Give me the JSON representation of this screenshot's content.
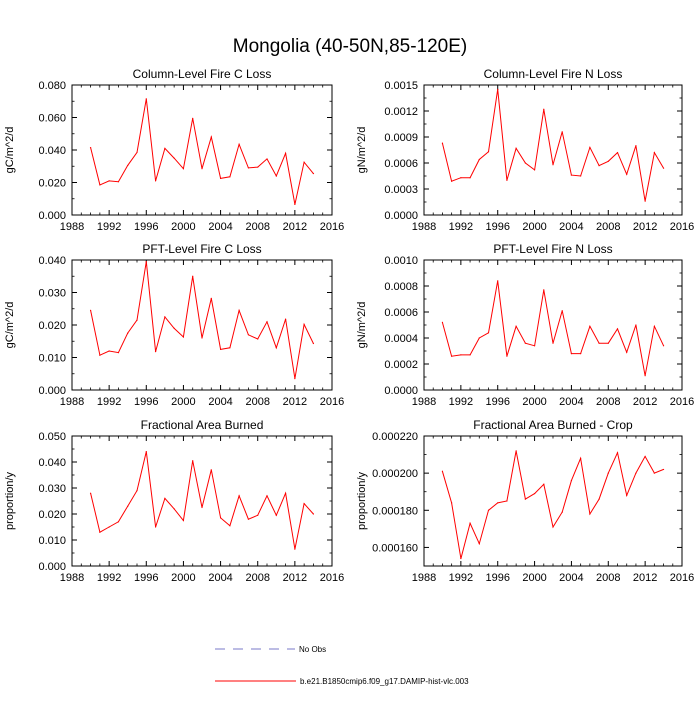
{
  "page_title": "Mongolia (40-50N,85-120E)",
  "legend": {
    "no_obs_label": "No Obs",
    "model_label": "b.e21.B1850cmip6.f09_g17.DAMIP-hist-vlc.003",
    "no_obs_color": "#7a7ac8",
    "model_color": "#ff0000"
  },
  "chart_data": [
    {
      "type": "line",
      "title": "Column-Level Fire C Loss",
      "xlabel": "",
      "ylabel": "gC/m^2/d",
      "xlim": [
        1988,
        2016
      ],
      "ylim": [
        0,
        0.08
      ],
      "xticks": [
        1988,
        1992,
        1996,
        2000,
        2004,
        2008,
        2012,
        2016
      ],
      "xtick_labels": [
        "1988",
        "1992",
        "1996",
        "2000",
        "2004",
        "2008",
        "2012",
        "2016"
      ],
      "yticks": [
        0,
        0.02,
        0.04,
        0.06,
        0.08
      ],
      "ytick_labels": [
        "0.000",
        "0.020",
        "0.040",
        "0.060",
        "0.080"
      ],
      "series": [
        {
          "name": "b.e21.B1850cmip6.f09_g17.DAMIP-hist-vlc.003",
          "x": [
            1990,
            1991,
            1992,
            1993,
            1994,
            1995,
            1996,
            1997,
            1998,
            1999,
            2000,
            2001,
            2002,
            2003,
            2004,
            2005,
            2006,
            2007,
            2008,
            2009,
            2010,
            2011,
            2012,
            2013,
            2014
          ],
          "values": [
            0.0415,
            0.0185,
            0.021,
            0.0205,
            0.0305,
            0.0385,
            0.0715,
            0.021,
            0.041,
            0.035,
            0.0285,
            0.0595,
            0.0285,
            0.048,
            0.0225,
            0.0235,
            0.0435,
            0.029,
            0.0295,
            0.0345,
            0.024,
            0.038,
            0.0065,
            0.0325,
            0.0255
          ]
        }
      ]
    },
    {
      "type": "line",
      "title": "Column-Level Fire N Loss",
      "xlabel": "",
      "ylabel": "gN/m^2/d",
      "xlim": [
        1988,
        2016
      ],
      "ylim": [
        0,
        0.0015
      ],
      "xticks": [
        1988,
        1992,
        1996,
        2000,
        2004,
        2008,
        2012,
        2016
      ],
      "xtick_labels": [
        "1988",
        "1992",
        "1996",
        "2000",
        "2004",
        "2008",
        "2012",
        "2016"
      ],
      "yticks": [
        0,
        0.0003,
        0.0006,
        0.0009,
        0.0012,
        0.0015
      ],
      "ytick_labels": [
        "0.0000",
        "0.0003",
        "0.0006",
        "0.0009",
        "0.0012",
        "0.0015"
      ],
      "series": [
        {
          "name": "b.e21.B1850cmip6.f09_g17.DAMIP-hist-vlc.003",
          "x": [
            1990,
            1991,
            1992,
            1993,
            1994,
            1995,
            1996,
            1997,
            1998,
            1999,
            2000,
            2001,
            2002,
            2003,
            2004,
            2005,
            2006,
            2007,
            2008,
            2009,
            2010,
            2011,
            2012,
            2013,
            2014
          ],
          "values": [
            0.00083,
            0.00039,
            0.00043,
            0.00043,
            0.00064,
            0.00073,
            0.00145,
            0.0004,
            0.00077,
            0.0006,
            0.00052,
            0.00122,
            0.00058,
            0.00096,
            0.00046,
            0.00045,
            0.00078,
            0.00057,
            0.00062,
            0.00072,
            0.00047,
            0.0008,
            0.00016,
            0.00072,
            0.00054
          ]
        }
      ]
    },
    {
      "type": "line",
      "title": "PFT-Level Fire C Loss",
      "xlabel": "",
      "ylabel": "gC/m^2/d",
      "xlim": [
        1988,
        2016
      ],
      "ylim": [
        0,
        0.04
      ],
      "xticks": [
        1988,
        1992,
        1996,
        2000,
        2004,
        2008,
        2012,
        2016
      ],
      "xtick_labels": [
        "1988",
        "1992",
        "1996",
        "2000",
        "2004",
        "2008",
        "2012",
        "2016"
      ],
      "yticks": [
        0,
        0.01,
        0.02,
        0.03,
        0.04
      ],
      "ytick_labels": [
        "0.000",
        "0.010",
        "0.020",
        "0.030",
        "0.040"
      ],
      "series": [
        {
          "name": "b.e21.B1850cmip6.f09_g17.DAMIP-hist-vlc.003",
          "x": [
            1990,
            1991,
            1992,
            1993,
            1994,
            1995,
            1996,
            1997,
            1998,
            1999,
            2000,
            2001,
            2002,
            2003,
            2004,
            2005,
            2006,
            2007,
            2008,
            2009,
            2010,
            2011,
            2012,
            2013,
            2014
          ],
          "values": [
            0.0245,
            0.0107,
            0.012,
            0.0115,
            0.0175,
            0.0215,
            0.0395,
            0.0118,
            0.0225,
            0.019,
            0.0163,
            0.035,
            0.016,
            0.0282,
            0.0125,
            0.013,
            0.0245,
            0.017,
            0.0157,
            0.021,
            0.013,
            0.0218,
            0.0035,
            0.0202,
            0.0143
          ]
        }
      ]
    },
    {
      "type": "line",
      "title": "PFT-Level Fire N Loss",
      "xlabel": "",
      "ylabel": "gN/m^2/d",
      "xlim": [
        1988,
        2016
      ],
      "ylim": [
        0,
        0.001
      ],
      "xticks": [
        1988,
        1992,
        1996,
        2000,
        2004,
        2008,
        2012,
        2016
      ],
      "xtick_labels": [
        "1988",
        "1992",
        "1996",
        "2000",
        "2004",
        "2008",
        "2012",
        "2016"
      ],
      "yticks": [
        0,
        0.0002,
        0.0004,
        0.0006,
        0.0008,
        0.001
      ],
      "ytick_labels": [
        "0.0000",
        "0.0002",
        "0.0004",
        "0.0006",
        "0.0008",
        "0.0010"
      ],
      "series": [
        {
          "name": "b.e21.B1850cmip6.f09_g17.DAMIP-hist-vlc.003",
          "x": [
            1990,
            1991,
            1992,
            1993,
            1994,
            1995,
            1996,
            1997,
            1998,
            1999,
            2000,
            2001,
            2002,
            2003,
            2004,
            2005,
            2006,
            2007,
            2008,
            2009,
            2010,
            2011,
            2012,
            2013,
            2014
          ],
          "values": [
            0.00052,
            0.00026,
            0.00027,
            0.00027,
            0.0004,
            0.00044,
            0.00084,
            0.00026,
            0.00049,
            0.00036,
            0.00034,
            0.00077,
            0.00036,
            0.00061,
            0.00028,
            0.00028,
            0.00049,
            0.00036,
            0.00036,
            0.00047,
            0.00029,
            0.0005,
            0.00011,
            0.00049,
            0.00034
          ]
        }
      ]
    },
    {
      "type": "line",
      "title": "Fractional Area Burned",
      "xlabel": "",
      "ylabel": "proportion/y",
      "xlim": [
        1988,
        2016
      ],
      "ylim": [
        0,
        0.05
      ],
      "xticks": [
        1988,
        1992,
        1996,
        2000,
        2004,
        2008,
        2012,
        2016
      ],
      "xtick_labels": [
        "1988",
        "1992",
        "1996",
        "2000",
        "2004",
        "2008",
        "2012",
        "2016"
      ],
      "yticks": [
        0,
        0.01,
        0.02,
        0.03,
        0.04,
        0.05
      ],
      "ytick_labels": [
        "0.000",
        "0.010",
        "0.020",
        "0.030",
        "0.040",
        "0.050"
      ],
      "series": [
        {
          "name": "b.e21.B1850cmip6.f09_g17.DAMIP-hist-vlc.003",
          "x": [
            1990,
            1991,
            1992,
            1993,
            1994,
            1995,
            1996,
            1997,
            1998,
            1999,
            2000,
            2001,
            2002,
            2003,
            2004,
            2005,
            2006,
            2007,
            2008,
            2009,
            2010,
            2011,
            2012,
            2013,
            2014
          ],
          "values": [
            0.028,
            0.013,
            0.015,
            0.017,
            0.023,
            0.029,
            0.044,
            0.015,
            0.026,
            0.022,
            0.0175,
            0.0405,
            0.0225,
            0.037,
            0.0185,
            0.0155,
            0.027,
            0.018,
            0.0195,
            0.027,
            0.0195,
            0.028,
            0.0065,
            0.024,
            0.02
          ]
        }
      ]
    },
    {
      "type": "line",
      "title": "Fractional Area Burned - Crop",
      "xlabel": "",
      "ylabel": "proportion/y",
      "xlim": [
        1988,
        2016
      ],
      "ylim": [
        0.00015,
        0.00022
      ],
      "xticks": [
        1988,
        1992,
        1996,
        2000,
        2004,
        2008,
        2012,
        2016
      ],
      "xtick_labels": [
        "1988",
        "1992",
        "1996",
        "2000",
        "2004",
        "2008",
        "2012",
        "2016"
      ],
      "yticks": [
        0.00016,
        0.00018,
        0.0002,
        0.00022
      ],
      "ytick_labels": [
        "0.000160",
        "0.000180",
        "0.000200",
        "0.000220"
      ],
      "series": [
        {
          "name": "b.e21.B1850cmip6.f09_g17.DAMIP-hist-vlc.003",
          "x": [
            1990,
            1991,
            1992,
            1993,
            1994,
            1995,
            1996,
            1997,
            1998,
            1999,
            2000,
            2001,
            2002,
            2003,
            2004,
            2005,
            2006,
            2007,
            2008,
            2009,
            2010,
            2011,
            2012,
            2013,
            2014
          ],
          "values": [
            0.000201,
            0.000184,
            0.000154,
            0.000173,
            0.000162,
            0.00018,
            0.000184,
            0.000185,
            0.000212,
            0.000186,
            0.000189,
            0.000194,
            0.000171,
            0.000179,
            0.000196,
            0.000208,
            0.000178,
            0.000186,
            0.0002,
            0.000211,
            0.000188,
            0.0002,
            0.000209,
            0.0002,
            0.000202
          ]
        }
      ]
    }
  ]
}
